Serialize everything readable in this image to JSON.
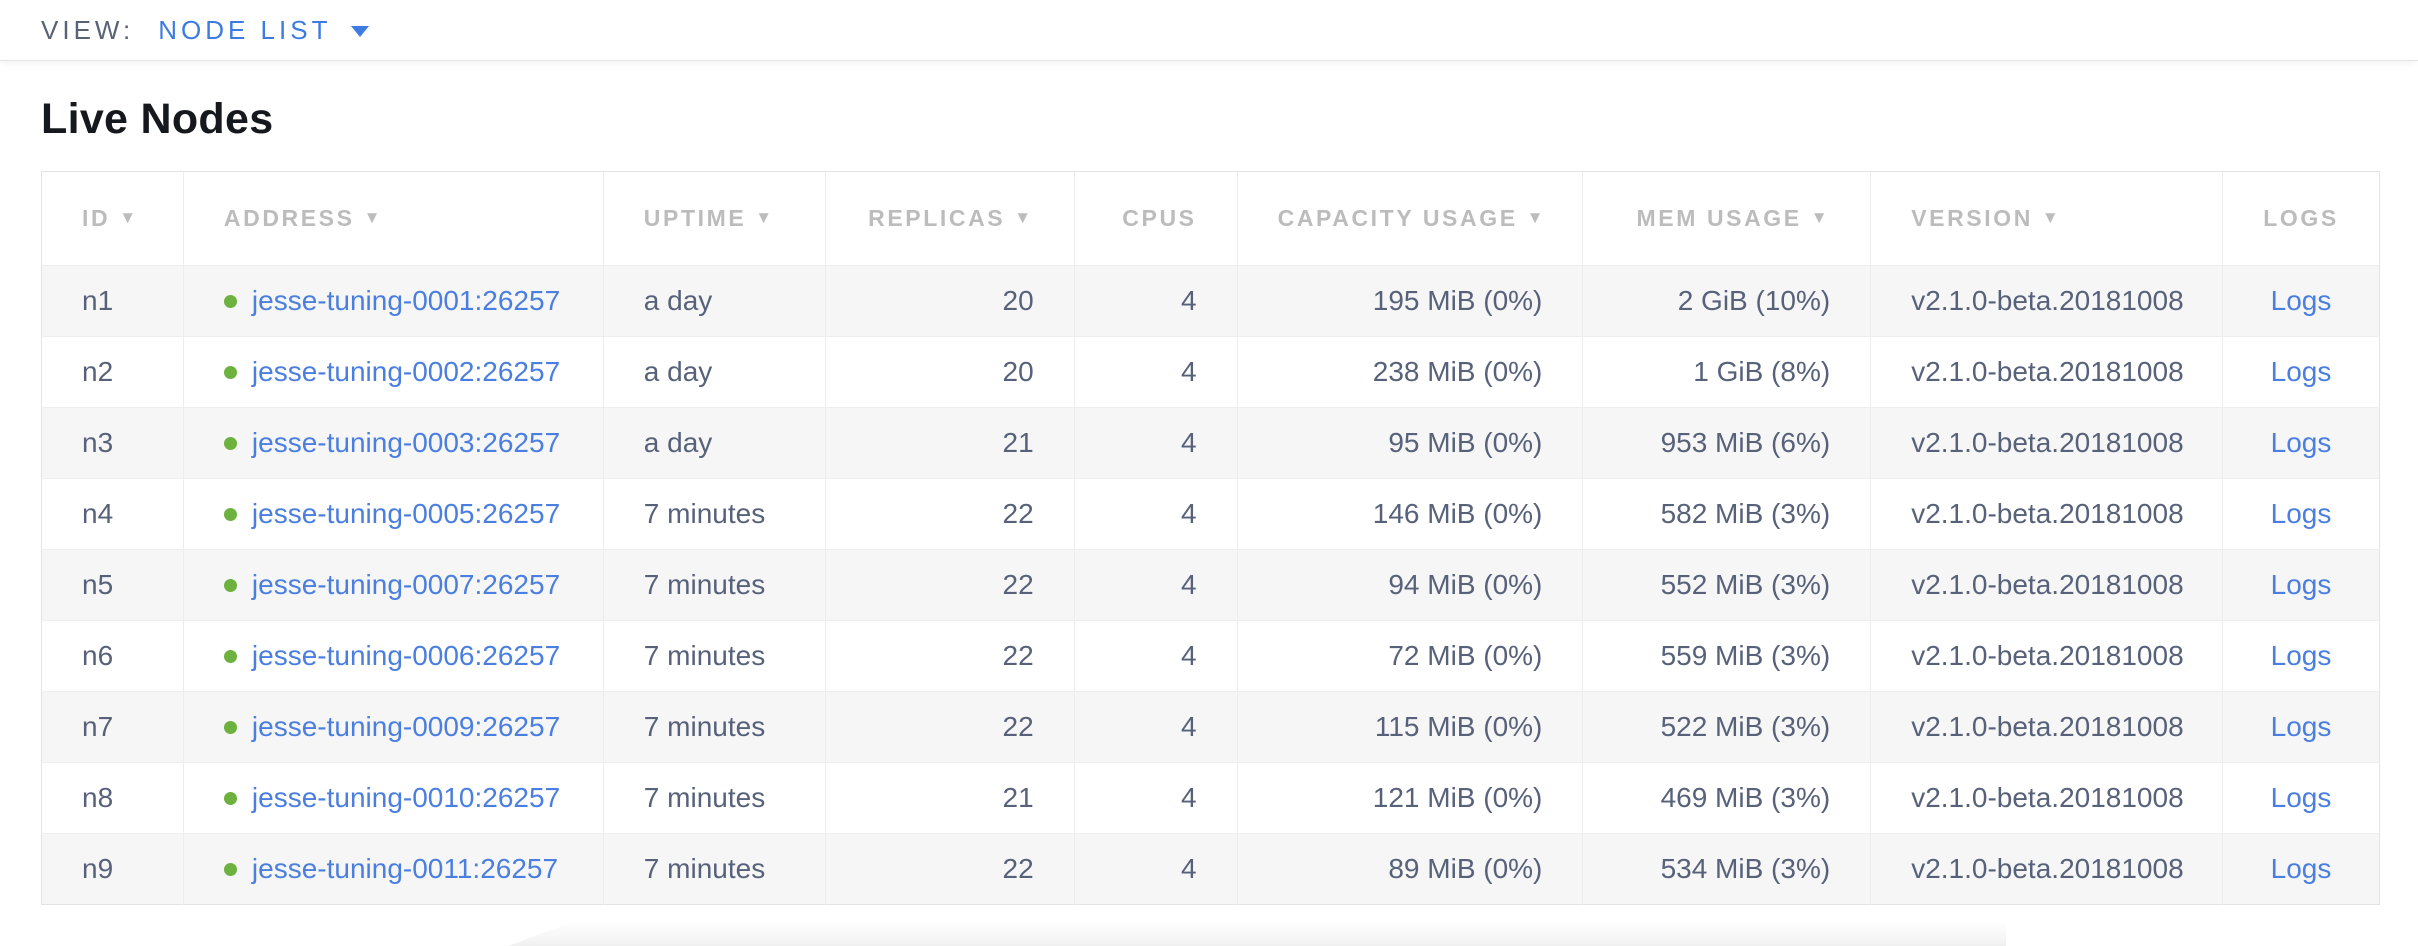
{
  "view_bar": {
    "label": "VIEW:",
    "selected": "NODE LIST"
  },
  "page": {
    "title": "Live Nodes"
  },
  "colors": {
    "accent_blue": "#3d7be2",
    "link_blue": "#4a7ee0",
    "healthy_green": "#6db13e"
  },
  "icons": {
    "view_caret": "caret-down",
    "sort_desc": "▼",
    "node_status_dot": "●"
  },
  "table": {
    "columns": [
      {
        "key": "id",
        "label": "ID",
        "sort_arrow": true
      },
      {
        "key": "address",
        "label": "ADDRESS",
        "sort_arrow": true
      },
      {
        "key": "uptime",
        "label": "UPTIME",
        "sort_arrow": true
      },
      {
        "key": "replicas",
        "label": "REPLICAS",
        "sort_arrow": true
      },
      {
        "key": "cpus",
        "label": "CPUS",
        "sort_arrow": false
      },
      {
        "key": "capacity",
        "label": "CAPACITY USAGE",
        "sort_arrow": true
      },
      {
        "key": "mem",
        "label": "MEM USAGE",
        "sort_arrow": true
      },
      {
        "key": "version",
        "label": "VERSION",
        "sort_arrow": true
      },
      {
        "key": "logs",
        "label": "LOGS",
        "sort_arrow": false
      }
    ],
    "rows": [
      {
        "id": "n1",
        "address": "jesse-tuning-0001:26257",
        "uptime": "a day",
        "replicas": "20",
        "cpus": "4",
        "capacity": "195 MiB (0%)",
        "mem": "2 GiB (10%)",
        "version": "v2.1.0-beta.20181008",
        "logs": "Logs"
      },
      {
        "id": "n2",
        "address": "jesse-tuning-0002:26257",
        "uptime": "a day",
        "replicas": "20",
        "cpus": "4",
        "capacity": "238 MiB (0%)",
        "mem": "1 GiB (8%)",
        "version": "v2.1.0-beta.20181008",
        "logs": "Logs"
      },
      {
        "id": "n3",
        "address": "jesse-tuning-0003:26257",
        "uptime": "a day",
        "replicas": "21",
        "cpus": "4",
        "capacity": "95 MiB (0%)",
        "mem": "953 MiB (6%)",
        "version": "v2.1.0-beta.20181008",
        "logs": "Logs"
      },
      {
        "id": "n4",
        "address": "jesse-tuning-0005:26257",
        "uptime": "7 minutes",
        "replicas": "22",
        "cpus": "4",
        "capacity": "146 MiB (0%)",
        "mem": "582 MiB (3%)",
        "version": "v2.1.0-beta.20181008",
        "logs": "Logs"
      },
      {
        "id": "n5",
        "address": "jesse-tuning-0007:26257",
        "uptime": "7 minutes",
        "replicas": "22",
        "cpus": "4",
        "capacity": "94 MiB (0%)",
        "mem": "552 MiB (3%)",
        "version": "v2.1.0-beta.20181008",
        "logs": "Logs"
      },
      {
        "id": "n6",
        "address": "jesse-tuning-0006:26257",
        "uptime": "7 minutes",
        "replicas": "22",
        "cpus": "4",
        "capacity": "72 MiB (0%)",
        "mem": "559 MiB (3%)",
        "version": "v2.1.0-beta.20181008",
        "logs": "Logs"
      },
      {
        "id": "n7",
        "address": "jesse-tuning-0009:26257",
        "uptime": "7 minutes",
        "replicas": "22",
        "cpus": "4",
        "capacity": "115 MiB (0%)",
        "mem": "522 MiB (3%)",
        "version": "v2.1.0-beta.20181008",
        "logs": "Logs"
      },
      {
        "id": "n8",
        "address": "jesse-tuning-0010:26257",
        "uptime": "7 minutes",
        "replicas": "21",
        "cpus": "4",
        "capacity": "121 MiB (0%)",
        "mem": "469 MiB (3%)",
        "version": "v2.1.0-beta.20181008",
        "logs": "Logs"
      },
      {
        "id": "n9",
        "address": "jesse-tuning-0011:26257",
        "uptime": "7 minutes",
        "replicas": "22",
        "cpus": "4",
        "capacity": "89 MiB (0%)",
        "mem": "534 MiB (3%)",
        "version": "v2.1.0-beta.20181008",
        "logs": "Logs"
      }
    ]
  }
}
